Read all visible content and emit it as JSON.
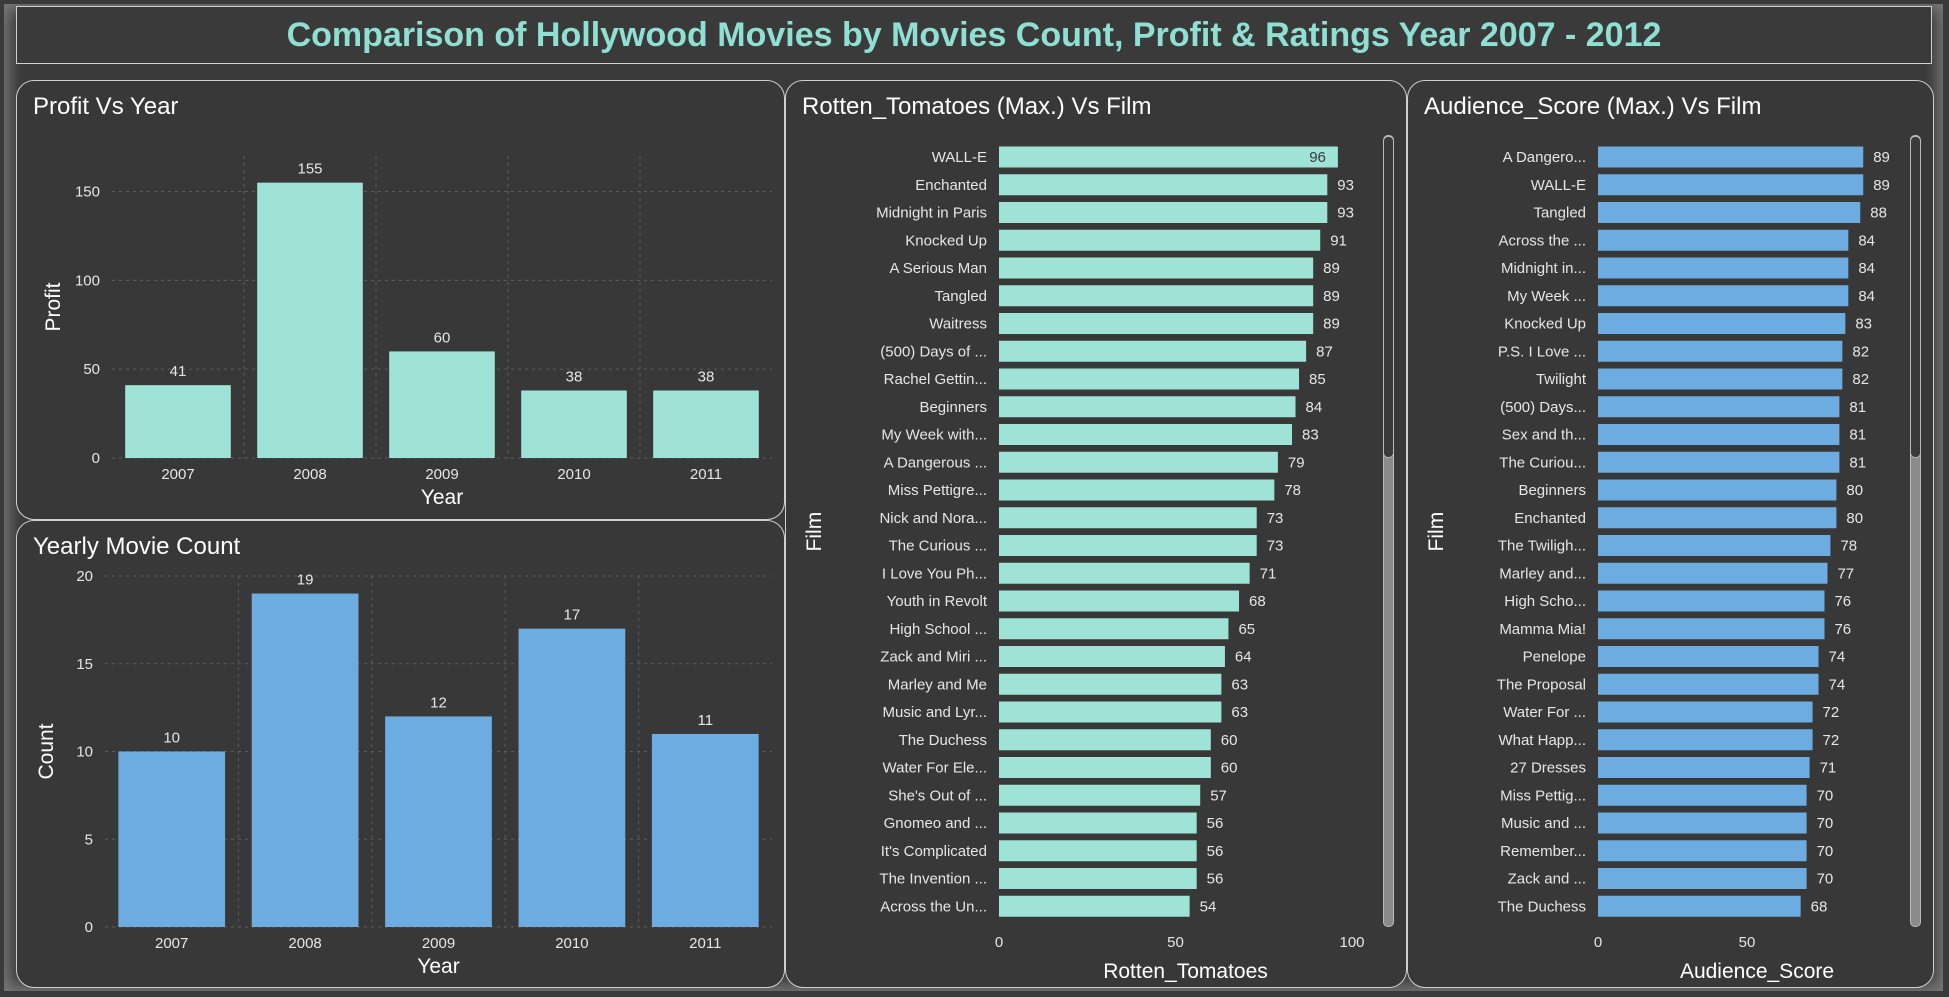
{
  "dashboard": {
    "title": "Comparison of Hollywood Movies by Movies Count, Profit & Ratings Year 2007 - 2012"
  },
  "colors": {
    "teal": "#9ee3d6",
    "blue": "#6cace0",
    "text": "#e6e6e6",
    "grid": "#5c5c5c"
  },
  "chart_data": [
    {
      "id": "profit",
      "type": "bar",
      "title": "Profit Vs Year",
      "xlabel": "Year",
      "ylabel": "Profit",
      "categories": [
        "2007",
        "2008",
        "2009",
        "2010",
        "2011"
      ],
      "values": [
        41,
        155,
        60,
        38,
        38
      ],
      "ylim": [
        0,
        170
      ],
      "yticks": [
        0,
        50,
        100,
        150
      ],
      "grid": true,
      "data_labels": true
    },
    {
      "id": "count",
      "type": "bar",
      "title": "Yearly Movie Count",
      "xlabel": "Year",
      "ylabel": "Count",
      "categories": [
        "2007",
        "2008",
        "2009",
        "2010",
        "2011"
      ],
      "values": [
        10,
        19,
        12,
        17,
        11
      ],
      "ylim": [
        0,
        20
      ],
      "yticks": [
        0,
        5,
        10,
        15,
        20
      ],
      "grid": true,
      "data_labels": true
    },
    {
      "id": "rotten",
      "type": "bar",
      "orientation": "horizontal",
      "title": "Rotten_Tomatoes (Max.) Vs Film",
      "xlabel": "Rotten_Tomatoes",
      "ylabel": "Film",
      "categories": [
        "WALL-E",
        "Enchanted",
        "Midnight in Paris",
        "Knocked Up",
        "A Serious Man",
        "Tangled",
        "Waitress",
        "(500) Days of ...",
        "Rachel Gettin...",
        "Beginners",
        "My Week with...",
        "A Dangerous ...",
        "Miss Pettigre...",
        "Nick and Nora...",
        "The Curious ...",
        "I Love You Ph...",
        "Youth in Revolt",
        "High School ...",
        "Zack and Miri ...",
        "Marley and Me",
        "Music and Lyr...",
        "The Duchess",
        "Water For Ele...",
        "She's Out of ...",
        "Gnomeo and ...",
        "It's Complicated",
        "The Invention ...",
        "Across the Un..."
      ],
      "values": [
        96,
        93,
        93,
        91,
        89,
        89,
        89,
        87,
        85,
        84,
        83,
        79,
        78,
        73,
        73,
        71,
        68,
        65,
        64,
        63,
        63,
        60,
        60,
        57,
        56,
        56,
        56,
        54
      ],
      "xlim": [
        0,
        100
      ],
      "xticks": [
        0,
        50,
        100
      ],
      "data_labels": true
    },
    {
      "id": "audience",
      "type": "bar",
      "orientation": "horizontal",
      "title": "Audience_Score (Max.) Vs Film",
      "xlabel": "Audience_Score",
      "ylabel": "Film",
      "categories": [
        "A Dangero...",
        "WALL-E",
        "Tangled",
        "Across the ...",
        "Midnight in...",
        "My Week ...",
        "Knocked Up",
        "P.S. I Love ...",
        "Twilight",
        "(500) Days...",
        "Sex and th...",
        "The Curiou...",
        "Beginners",
        "Enchanted",
        "The Twiligh...",
        "Marley and...",
        "High Scho...",
        "Mamma Mia!",
        "Penelope",
        "The Proposal",
        "Water For ...",
        "What Happ...",
        "27 Dresses",
        "Miss Pettig...",
        "Music and ...",
        "Remember...",
        "Zack and ...",
        "The Duchess"
      ],
      "values": [
        89,
        89,
        88,
        84,
        84,
        84,
        83,
        82,
        82,
        81,
        81,
        81,
        80,
        80,
        78,
        77,
        76,
        76,
        74,
        74,
        72,
        72,
        71,
        70,
        70,
        70,
        70,
        68
      ],
      "xlim": [
        0,
        100
      ],
      "xticks": [
        0,
        50
      ],
      "data_labels": true
    }
  ]
}
